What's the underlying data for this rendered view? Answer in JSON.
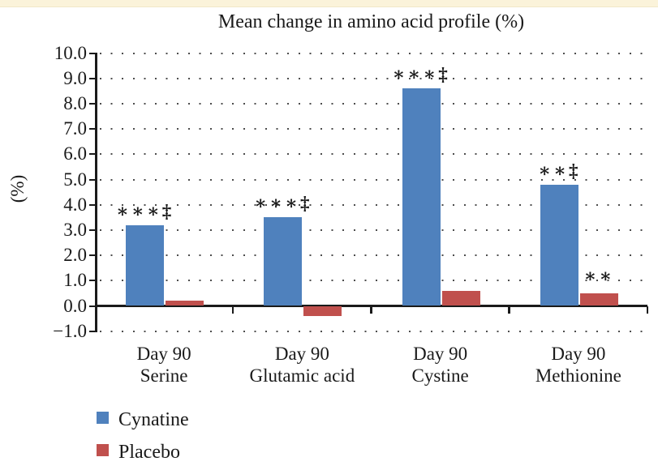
{
  "page": {
    "top_strip_color": "#fbf3da"
  },
  "chart_data": {
    "type": "bar",
    "title": "Mean change in amino acid profile (%)",
    "ylabel": "(%)",
    "ylim": [
      -1.0,
      10.0
    ],
    "ytick_step": 1.0,
    "ytick_labels": [
      "10.0",
      "9.0",
      "8.0",
      "7.0",
      "6.0",
      "5.0",
      "4.0",
      "3.0",
      "2.0",
      "1.0",
      "0.0",
      "−1.0"
    ],
    "grid": "dotted-horizontal",
    "legend_position": "bottom-left",
    "categories": [
      {
        "line1": "Day 90",
        "line2": "Serine"
      },
      {
        "line1": "Day 90",
        "line2": "Glutamic acid"
      },
      {
        "line1": "Day 90",
        "line2": "Cystine"
      },
      {
        "line1": "Day 90",
        "line2": "Methionine"
      }
    ],
    "series": [
      {
        "name": "Cynatine",
        "color": "#4F81BD",
        "values": [
          3.2,
          3.5,
          8.6,
          4.8
        ]
      },
      {
        "name": "Placebo",
        "color": "#C0504D",
        "values": [
          0.2,
          -0.4,
          0.6,
          0.5
        ]
      }
    ],
    "annotations": [
      {
        "category": 0,
        "series": 0,
        "text": "∗∗∗‡"
      },
      {
        "category": 1,
        "series": 0,
        "text": "∗∗∗‡"
      },
      {
        "category": 2,
        "series": 0,
        "text": "∗∗∗‡"
      },
      {
        "category": 3,
        "series": 0,
        "text": "∗∗‡"
      },
      {
        "category": 3,
        "series": 1,
        "text": "∗∗"
      }
    ]
  }
}
